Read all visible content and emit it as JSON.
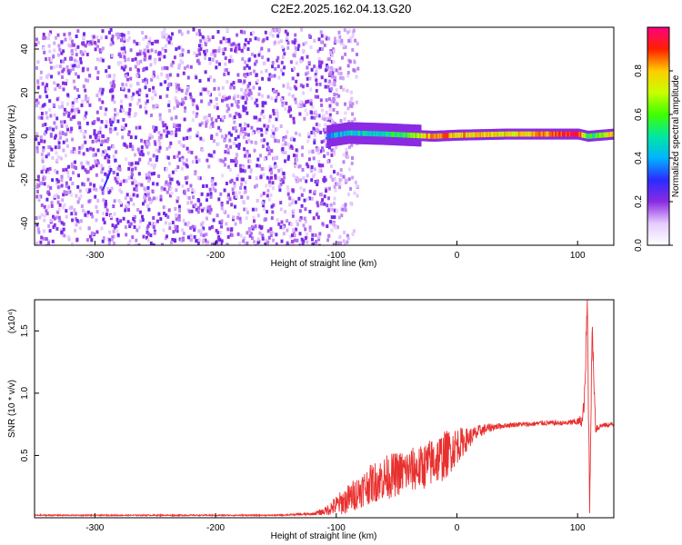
{
  "title": "C2E2.2025.162.04.13.G20",
  "colors": {
    "spectrogram_noise": "#8a2be2",
    "snr_line": "#e8312f",
    "axes": "#000000"
  },
  "chart_data": [
    {
      "type": "heatmap",
      "xlabel": "Height of straight line (km)",
      "ylabel": "Frequency (Hz)",
      "xlim": [
        -350,
        130
      ],
      "ylim": [
        -50,
        50
      ],
      "x_ticks": [
        -300,
        -200,
        -100,
        0,
        100
      ],
      "y_ticks": [
        -40,
        -20,
        0,
        20,
        40
      ],
      "colorbar": {
        "label": "Normalized spectral amplitude",
        "range": [
          0.0,
          1.0
        ],
        "ticks": [
          0.0,
          0.2,
          0.4,
          0.6,
          0.8
        ],
        "tick_labels": [
          "0.0",
          "0.2",
          "0.4",
          "0.6",
          "0.8"
        ],
        "colormap": "rainbow (white-violet-blue-cyan-green-yellow-red-pink)"
      },
      "features": {
        "noise_region_x": [
          -350,
          -108
        ],
        "signal_trace": [
          {
            "x": -108,
            "freq": 0.0,
            "amp": 0.4
          },
          {
            "x": -90,
            "freq": 1.5,
            "amp": 0.45
          },
          {
            "x": -60,
            "freq": 1.0,
            "amp": 0.5
          },
          {
            "x": -40,
            "freq": 0.5,
            "amp": 0.6
          },
          {
            "x": -20,
            "freq": 0.0,
            "amp": 0.85
          },
          {
            "x": 0,
            "freq": 0.5,
            "amp": 0.8
          },
          {
            "x": 40,
            "freq": 1.0,
            "amp": 0.75
          },
          {
            "x": 80,
            "freq": 1.0,
            "amp": 0.85
          },
          {
            "x": 100,
            "freq": 1.0,
            "amp": 0.95
          },
          {
            "x": 108,
            "freq": 0.0,
            "amp": 0.5
          },
          {
            "x": 130,
            "freq": 1.0,
            "amp": 0.8
          }
        ],
        "isolated_feature": {
          "x": -290,
          "freq": -20,
          "amp": 0.3
        }
      }
    },
    {
      "type": "line",
      "xlabel": "Height of straight line (km)",
      "ylabel": "SNR (10 * v/v)",
      "y_multiplier": "(x10⁴)",
      "xlim": [
        -350,
        130
      ],
      "ylim": [
        0.0,
        1.75
      ],
      "x_ticks": [
        -300,
        -200,
        -100,
        0,
        100
      ],
      "y_ticks": [
        0.5,
        1.0,
        1.5
      ],
      "y_tick_labels": [
        "0.5",
        "1.0",
        "1.5"
      ],
      "series": [
        {
          "x": [
            -350,
            -300,
            -250,
            -200,
            -150,
            -120,
            -110,
            -100,
            -90,
            -80,
            -70,
            -60,
            -50,
            -40,
            -30,
            -20,
            -10,
            0,
            10,
            20,
            30,
            40,
            50,
            60,
            70,
            80,
            90,
            100,
            104,
            106,
            108,
            110,
            112,
            115,
            120,
            130
          ],
          "y": [
            0.02,
            0.02,
            0.02,
            0.02,
            0.02,
            0.03,
            0.05,
            0.1,
            0.15,
            0.22,
            0.28,
            0.32,
            0.35,
            0.38,
            0.4,
            0.45,
            0.5,
            0.58,
            0.64,
            0.7,
            0.73,
            0.74,
            0.75,
            0.75,
            0.76,
            0.76,
            0.76,
            0.77,
            0.78,
            1.0,
            1.72,
            0.1,
            1.52,
            0.72,
            0.74,
            0.75
          ],
          "noise_amplitude": [
            0.005,
            0.005,
            0.005,
            0.005,
            0.005,
            0.01,
            0.03,
            0.08,
            0.12,
            0.14,
            0.16,
            0.18,
            0.18,
            0.18,
            0.18,
            0.2,
            0.2,
            0.15,
            0.08,
            0.05,
            0.03,
            0.02,
            0.02,
            0.02,
            0.02,
            0.02,
            0.02,
            0.03,
            0.05,
            0.1,
            0.2,
            0.1,
            0.1,
            0.05,
            0.02,
            0.02
          ]
        }
      ]
    }
  ]
}
